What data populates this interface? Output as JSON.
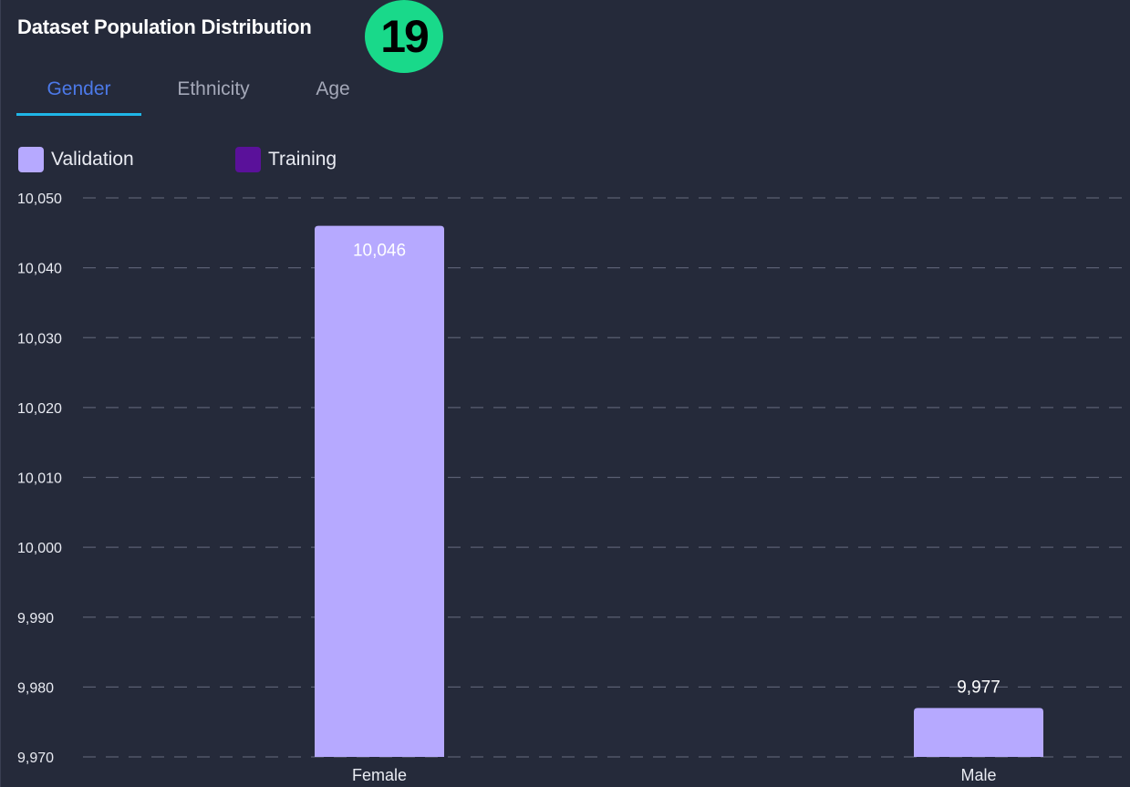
{
  "title": "Dataset Population Distribution",
  "step_badge": "19",
  "tabs": [
    {
      "label": "Gender",
      "active": true
    },
    {
      "label": "Ethnicity",
      "active": false
    },
    {
      "label": "Age",
      "active": false
    }
  ],
  "colors": {
    "background": "#252a3a",
    "validation": "#b6a9ff",
    "training": "#5a119a",
    "active_tab": "#4c79e8",
    "tab_indicator": "#1fb6e8",
    "step_badge": "#19d98a",
    "gridline": "#5a5f72"
  },
  "chart_data": {
    "type": "bar",
    "categories": [
      "Female",
      "Male"
    ],
    "series": [
      {
        "name": "Validation",
        "values": [
          10046,
          9977
        ],
        "labels": [
          "10,046",
          "9,977"
        ]
      },
      {
        "name": "Training",
        "values": [
          null,
          null
        ]
      }
    ],
    "legend": [
      "Validation",
      "Training"
    ],
    "legend_position": "top-left",
    "ylim": [
      9970,
      10050
    ],
    "yticks": [
      10050,
      10040,
      10030,
      10020,
      10010,
      10000,
      9990,
      9980,
      9970
    ],
    "ytick_labels": [
      "10,050",
      "10,040",
      "10,030",
      "10,020",
      "10,010",
      "10,000",
      "9,990",
      "9,980",
      "9,970"
    ],
    "grid": true,
    "grid_style": "dashed",
    "title": "",
    "xlabel": "",
    "ylabel": ""
  }
}
